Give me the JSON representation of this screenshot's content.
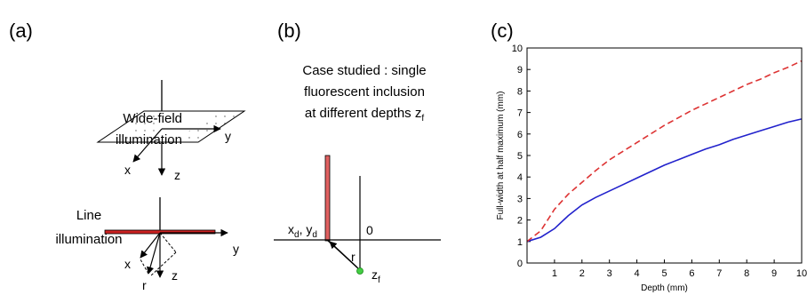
{
  "panel_a": {
    "label": "(a)",
    "widefield_label": [
      "Wide-field",
      "illumination"
    ],
    "line_label": [
      "Line",
      "illumination"
    ],
    "axes_top": {
      "x": "x",
      "y": "y",
      "z": "z"
    },
    "axes_bottom": {
      "x": "x",
      "y": "y",
      "z": "z",
      "r": "r"
    }
  },
  "panel_b": {
    "label": "(b)",
    "case_text": [
      "Case studied : single",
      "fluorescent inclusion",
      "at different depths z"
    ],
    "case_sub": "f",
    "detector_label": "x",
    "detector_sub1": "d",
    "detector_mid": ", y",
    "detector_sub2": "d",
    "origin_label": "0",
    "r_label": "r",
    "inclusion_label": "z",
    "inclusion_sub": "f",
    "colors": {
      "detector": "#e06060",
      "inclusion": "#44cc44"
    }
  },
  "panel_c": {
    "label": "(c)"
  },
  "chart_data": {
    "type": "line",
    "xlabel": "Depth (mm)",
    "ylabel": "Full-width at half maximum (mm)",
    "xlim": [
      0,
      10
    ],
    "ylim": [
      0,
      10
    ],
    "xticks": [
      1,
      2,
      3,
      4,
      5,
      6,
      7,
      8,
      9,
      10
    ],
    "yticks": [
      0,
      1,
      2,
      3,
      4,
      5,
      6,
      7,
      8,
      9,
      10
    ],
    "grid": false,
    "series": [
      {
        "style": "solid",
        "color": "#2222cc",
        "x": [
          0,
          0.5,
          1,
          1.5,
          2,
          2.5,
          3,
          3.5,
          4,
          4.5,
          5,
          5.5,
          6,
          6.5,
          7,
          7.5,
          8,
          8.5,
          9,
          9.5,
          10
        ],
        "y": [
          1.0,
          1.2,
          1.6,
          2.2,
          2.7,
          3.05,
          3.35,
          3.65,
          3.95,
          4.25,
          4.55,
          4.8,
          5.05,
          5.3,
          5.5,
          5.75,
          5.95,
          6.15,
          6.35,
          6.55,
          6.7
        ]
      },
      {
        "style": "dashed",
        "color": "#dd3333",
        "x": [
          0,
          0.5,
          1,
          1.5,
          2,
          2.5,
          3,
          3.5,
          4,
          4.5,
          5,
          5.5,
          6,
          6.5,
          7,
          7.5,
          8,
          8.5,
          9,
          9.5,
          10
        ],
        "y": [
          1.0,
          1.5,
          2.5,
          3.2,
          3.75,
          4.3,
          4.8,
          5.2,
          5.6,
          6.0,
          6.4,
          6.75,
          7.1,
          7.4,
          7.7,
          8.0,
          8.3,
          8.55,
          8.85,
          9.1,
          9.4
        ]
      }
    ]
  }
}
